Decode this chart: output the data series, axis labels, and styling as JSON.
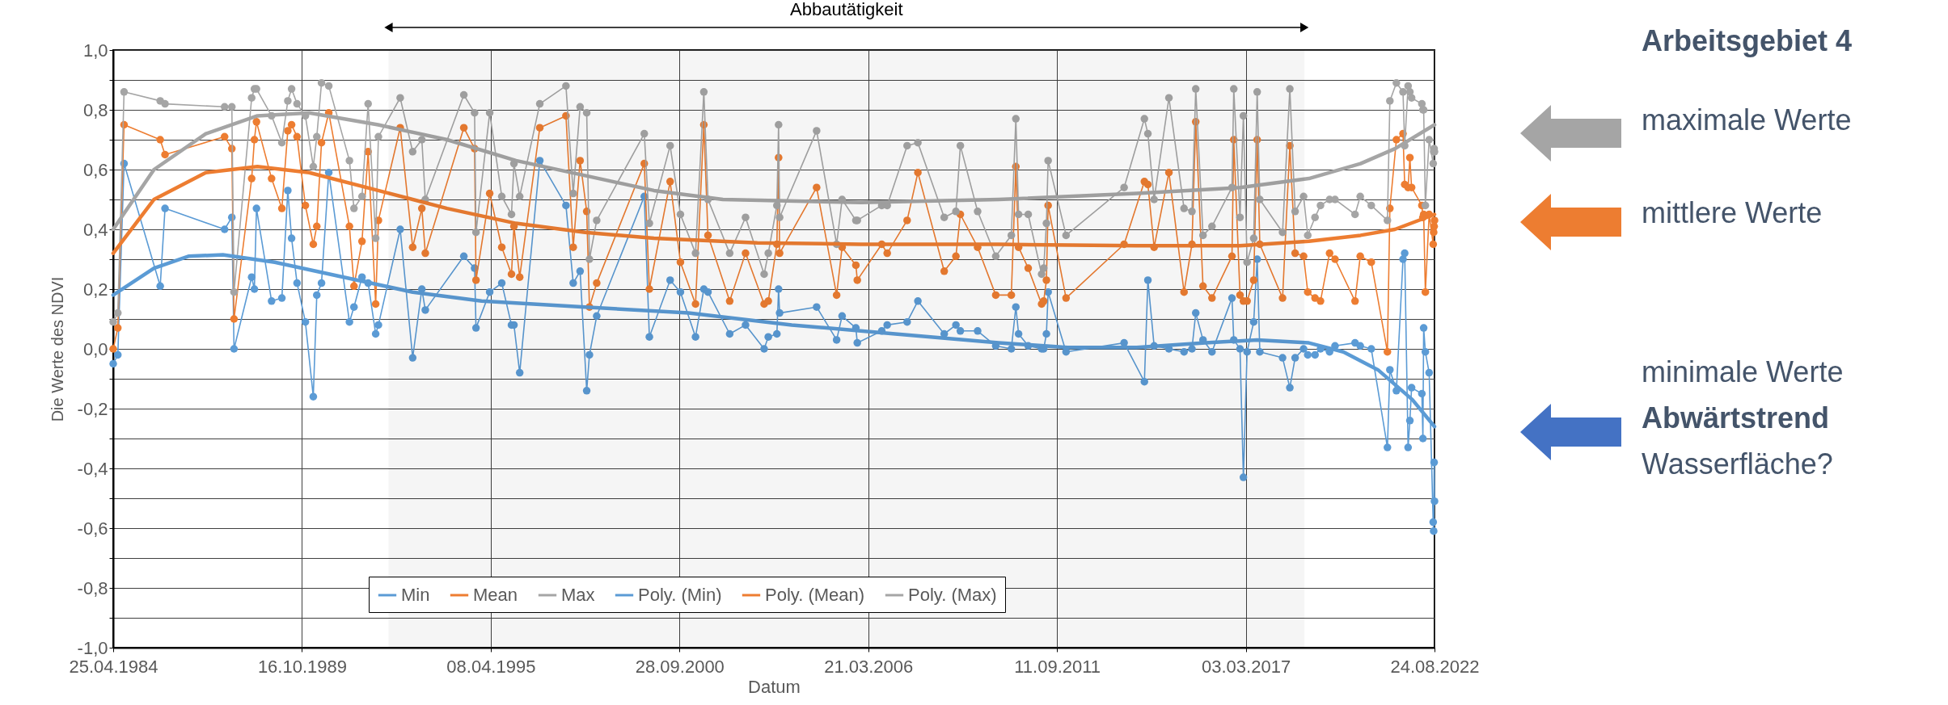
{
  "chart_data": {
    "type": "line",
    "xlabel": "Datum",
    "ylabel": "Die Werte des NDVI",
    "grid": true,
    "legend": "bottom",
    "marker": "circle",
    "xlim": [
      "1984-04-25",
      "2022-08-24"
    ],
    "xticks": [
      {
        "value": "1984-04-25",
        "label": "25.04.1984"
      },
      {
        "value": "1989-10-16",
        "label": "16.10.1989"
      },
      {
        "value": "1995-04-08",
        "label": "08.04.1995"
      },
      {
        "value": "2000-09-28",
        "label": "28.09.2000"
      },
      {
        "value": "2006-03-21",
        "label": "21.03.2006"
      },
      {
        "value": "2011-09-11",
        "label": "11.09.2011"
      },
      {
        "value": "2017-03-03",
        "label": "03.03.2017"
      },
      {
        "value": "2022-08-24",
        "label": "24.08.2022"
      }
    ],
    "ylim": [
      -1,
      1
    ],
    "yticks": [
      {
        "value": -1,
        "label": "-1,0"
      },
      {
        "value": -0.9,
        "label": null
      },
      {
        "value": -0.8,
        "label": "-0,8"
      },
      {
        "value": -0.7,
        "label": null
      },
      {
        "value": -0.6,
        "label": "-0,6"
      },
      {
        "value": -0.5,
        "label": null
      },
      {
        "value": -0.4,
        "label": "-0,4"
      },
      {
        "value": -0.3,
        "label": null
      },
      {
        "value": -0.2,
        "label": "-0,2"
      },
      {
        "value": -0.1,
        "label": null
      },
      {
        "value": 0,
        "label": "0,0"
      },
      {
        "value": 0.1,
        "label": null
      },
      {
        "value": 0.2,
        "label": "0,2"
      },
      {
        "value": 0.3,
        "label": null
      },
      {
        "value": 0.4,
        "label": "0,4"
      },
      {
        "value": 0.5,
        "label": null
      },
      {
        "value": 0.6,
        "label": "0,6"
      },
      {
        "value": 0.7,
        "label": null
      },
      {
        "value": 0.8,
        "label": "0,8"
      },
      {
        "value": 0.9,
        "label": null
      },
      {
        "value": 1,
        "label": "1,0"
      }
    ],
    "x": [
      "1984-04-25",
      "1984-06-13",
      "1984-08-18",
      "1985-09-05",
      "1985-10-26",
      "1987-07-19",
      "1987-10-04",
      "1987-10-27",
      "1988-05-01",
      "1988-05-30",
      "1988-06-21",
      "1988-11-28",
      "1989-03-17",
      "1989-05-19",
      "1989-06-28",
      "1989-08-25",
      "1989-11-21",
      "1990-02-13",
      "1990-03-22",
      "1990-05-11",
      "1990-07-27",
      "1991-03-03",
      "1991-04-20",
      "1991-07-14",
      "1991-09-17",
      "1991-12-06",
      "1992-01-04",
      "1992-08-22",
      "1993-01-01",
      "1993-04-08",
      "1993-05-15",
      "1994-06-27",
      "1994-10-19",
      "1994-11-03",
      "1995-03-28",
      "1995-08-03",
      "1995-11-14",
      "1995-12-10",
      "1996-02-09",
      "1996-09-09",
      "1997-06-13",
      "1997-08-29",
      "1997-11-10",
      "1998-01-19",
      "1998-02-17",
      "1998-05-05",
      "1999-09-21",
      "1999-11-14",
      "2000-06-21",
      "2000-10-08",
      "2001-03-17",
      "2001-06-13",
      "2001-07-27",
      "2002-03-14",
      "2002-08-29",
      "2003-03-14",
      "2003-04-27",
      "2003-07-27",
      "2003-08-14",
      "2003-08-25",
      "2004-09-20",
      "2005-04-20",
      "2005-06-17",
      "2005-11-10",
      "2005-11-25",
      "2006-08-11",
      "2006-10-08",
      "2007-05-07",
      "2007-08-29",
      "2008-06-03",
      "2008-10-05",
      "2008-11-21",
      "2009-05-23",
      "2009-12-01",
      "2010-05-15",
      "2010-07-02",
      "2010-07-31",
      "2010-11-10",
      "2011-04-01",
      "2011-04-23",
      "2011-05-22",
      "2011-06-09",
      "2011-12-16",
      "2013-08-22",
      "2014-03-25",
      "2014-05-01",
      "2014-07-06",
      "2014-12-10",
      "2015-05-19",
      "2015-08-11",
      "2015-09-20",
      "2015-12-06",
      "2016-03-10",
      "2016-10-08",
      "2016-10-27",
      "2017-01-01",
      "2017-02-06",
      "2017-03-17",
      "2017-05-26",
      "2017-07-02",
      "2017-07-30",
      "2018-03-28",
      "2018-06-13",
      "2018-08-08",
      "2018-11-06",
      "2018-12-20",
      "2019-03-07",
      "2019-05-04",
      "2019-08-08",
      "2019-10-05",
      "2020-05-04",
      "2020-06-28",
      "2020-10-23",
      "2021-04-12",
      "2021-05-08",
      "2021-07-16",
      "2021-09-24",
      "2021-10-12",
      "2021-11-17",
      "2021-12-06",
      "2021-12-24",
      "2022-04-12",
      "2022-04-23",
      "2022-05-01",
      "2022-05-19",
      "2022-06-28",
      "2022-08-10",
      "2022-08-15",
      "2022-08-20",
      "2022-08-24"
    ],
    "series": [
      {
        "name": "Min",
        "color": "#5b9bd5",
        "values": [
          -0.05,
          -0.02,
          0.62,
          0.21,
          0.47,
          0.4,
          0.44,
          0.0,
          0.24,
          0.2,
          0.47,
          0.16,
          0.17,
          0.53,
          0.37,
          0.22,
          0.09,
          -0.16,
          0.18,
          0.22,
          0.59,
          0.09,
          0.14,
          0.24,
          0.22,
          0.05,
          0.08,
          0.4,
          -0.03,
          0.2,
          0.13,
          0.31,
          0.27,
          0.07,
          0.19,
          0.22,
          0.08,
          0.08,
          -0.08,
          0.63,
          0.48,
          0.22,
          0.26,
          -0.14,
          -0.02,
          0.11,
          0.51,
          0.04,
          0.23,
          0.19,
          0.04,
          0.2,
          0.19,
          0.05,
          0.08,
          0.0,
          0.04,
          0.05,
          0.2,
          0.12,
          0.14,
          0.03,
          0.11,
          0.07,
          0.02,
          0.06,
          0.08,
          0.09,
          0.16,
          0.05,
          0.08,
          0.06,
          0.06,
          0.01,
          0.0,
          0.14,
          0.05,
          0.01,
          0.0,
          0.0,
          0.05,
          0.19,
          -0.01,
          0.02,
          -0.11,
          0.23,
          0.01,
          0.0,
          -0.01,
          0.0,
          0.12,
          0.03,
          -0.01,
          0.17,
          0.03,
          0.0,
          -0.43,
          -0.01,
          0.09,
          0.3,
          -0.01,
          -0.03,
          -0.13,
          -0.03,
          0.0,
          -0.02,
          -0.02,
          0.0,
          -0.01,
          0.01,
          0.02,
          0.01,
          0.0,
          -0.33,
          -0.07,
          -0.14,
          0.3,
          0.32,
          -0.33,
          -0.24,
          -0.13,
          -0.15,
          -0.3,
          0.07,
          -0.01,
          -0.08,
          -0.58,
          -0.61,
          -0.38,
          -0.51
        ]
      },
      {
        "name": "Mean",
        "color": "#ed7d31",
        "values": [
          0.0,
          0.07,
          0.75,
          0.7,
          0.65,
          0.71,
          0.67,
          0.1,
          0.57,
          0.7,
          0.76,
          0.57,
          0.47,
          0.73,
          0.75,
          0.71,
          0.48,
          0.35,
          0.41,
          0.69,
          0.79,
          0.41,
          0.21,
          0.36,
          0.66,
          0.15,
          0.43,
          0.74,
          0.34,
          0.47,
          0.32,
          0.74,
          0.67,
          0.23,
          0.52,
          0.34,
          0.25,
          0.41,
          0.24,
          0.74,
          0.78,
          0.34,
          0.63,
          0.46,
          0.14,
          0.22,
          0.62,
          0.2,
          0.56,
          0.29,
          0.15,
          0.75,
          0.38,
          0.16,
          0.32,
          0.15,
          0.16,
          0.35,
          0.64,
          0.32,
          0.54,
          0.18,
          0.34,
          0.28,
          0.23,
          0.35,
          0.32,
          0.43,
          0.59,
          0.26,
          0.31,
          0.45,
          0.34,
          0.18,
          0.18,
          0.61,
          0.34,
          0.27,
          0.15,
          0.16,
          0.23,
          0.48,
          0.17,
          0.35,
          0.56,
          0.55,
          0.34,
          0.59,
          0.19,
          0.35,
          0.76,
          0.21,
          0.17,
          0.31,
          0.7,
          0.18,
          0.16,
          0.16,
          0.23,
          0.7,
          0.35,
          0.17,
          0.68,
          0.32,
          0.31,
          0.19,
          0.17,
          0.16,
          0.32,
          0.3,
          0.16,
          0.31,
          0.29,
          -0.01,
          0.47,
          0.7,
          0.72,
          0.55,
          0.54,
          0.64,
          0.54,
          0.48,
          0.44,
          0.45,
          0.19,
          0.45,
          0.35,
          0.39,
          0.41,
          0.43
        ]
      },
      {
        "name": "Max",
        "color": "#a5a5a5",
        "values": [
          0.09,
          0.12,
          0.86,
          0.83,
          0.82,
          0.81,
          0.81,
          0.19,
          0.84,
          0.87,
          0.87,
          0.78,
          0.69,
          0.83,
          0.87,
          0.82,
          0.78,
          0.61,
          0.71,
          0.89,
          0.88,
          0.63,
          0.47,
          0.51,
          0.82,
          0.37,
          0.71,
          0.84,
          0.66,
          0.7,
          0.5,
          0.85,
          0.79,
          0.39,
          0.79,
          0.51,
          0.45,
          0.62,
          0.51,
          0.82,
          0.88,
          0.52,
          0.81,
          0.79,
          0.3,
          0.43,
          0.72,
          0.42,
          0.68,
          0.45,
          0.32,
          0.86,
          0.5,
          0.32,
          0.44,
          0.25,
          0.32,
          0.48,
          0.75,
          0.44,
          0.73,
          0.35,
          0.5,
          0.43,
          0.43,
          0.48,
          0.48,
          0.68,
          0.69,
          0.44,
          0.46,
          0.68,
          0.46,
          0.31,
          0.38,
          0.77,
          0.45,
          0.45,
          0.25,
          0.27,
          0.42,
          0.63,
          0.38,
          0.54,
          0.77,
          0.72,
          0.5,
          0.84,
          0.47,
          0.46,
          0.87,
          0.38,
          0.41,
          0.54,
          0.87,
          0.44,
          0.78,
          0.29,
          0.37,
          0.86,
          0.5,
          0.39,
          0.87,
          0.46,
          0.51,
          0.38,
          0.44,
          0.48,
          0.5,
          0.5,
          0.45,
          0.51,
          0.48,
          0.43,
          0.83,
          0.89,
          0.86,
          0.68,
          0.88,
          0.86,
          0.84,
          0.82,
          0.8,
          0.8,
          0.48,
          0.7,
          0.62,
          0.66,
          0.67,
          0.66
        ]
      },
      {
        "name": "Poly. (Min)",
        "color": "#5b9bd5",
        "marker": "none",
        "x": [
          "1984-04-25",
          "1985-07",
          "1986-07",
          "1987-07",
          "1989-01",
          "1991-01",
          "1993-01",
          "1995-01",
          "1998-01",
          "2001-01",
          "2004-01",
          "2007-01",
          "2010-01",
          "2012-01",
          "2014-01",
          "2016-01",
          "2017-07",
          "2019-01",
          "2020-01",
          "2021-01",
          "2022-01",
          "2022-08-24"
        ],
        "values": [
          0.18,
          0.27,
          0.31,
          0.315,
          0.29,
          0.24,
          0.19,
          0.16,
          0.14,
          0.12,
          0.08,
          0.05,
          0.02,
          0.005,
          0.005,
          0.02,
          0.03,
          0.02,
          -0.01,
          -0.07,
          -0.17,
          -0.26
        ]
      },
      {
        "name": "Poly. (Mean)",
        "color": "#ed7d31",
        "marker": "none",
        "x": [
          "1984-04-25",
          "1985-07",
          "1987-01",
          "1988-07",
          "1990-01",
          "1992-01",
          "1994-01",
          "1996-01",
          "1998-01",
          "2000-01",
          "2003-01",
          "2006-01",
          "2010-01",
          "2014-01",
          "2017-01",
          "2019-01",
          "2020-07",
          "2021-07",
          "2022-08-24"
        ],
        "values": [
          0.32,
          0.5,
          0.59,
          0.61,
          0.59,
          0.53,
          0.47,
          0.42,
          0.39,
          0.37,
          0.355,
          0.35,
          0.35,
          0.345,
          0.345,
          0.36,
          0.38,
          0.4,
          0.45
        ]
      },
      {
        "name": "Poly. (Max)",
        "color": "#a5a5a5",
        "marker": "none",
        "x": [
          "1984-04-25",
          "1985-07",
          "1987-01",
          "1988-07",
          "1990-01",
          "1992-01",
          "1994-01",
          "1996-01",
          "1998-01",
          "2000-01",
          "2002-01",
          "2006-01",
          "2010-01",
          "2014-01",
          "2017-01",
          "2019-01",
          "2020-07",
          "2021-07",
          "2022-08-24"
        ],
        "values": [
          0.4,
          0.6,
          0.72,
          0.78,
          0.79,
          0.75,
          0.7,
          0.63,
          0.58,
          0.53,
          0.5,
          0.49,
          0.5,
          0.52,
          0.54,
          0.57,
          0.62,
          0.67,
          0.75
        ]
      }
    ],
    "bands": [
      {
        "axis": "x",
        "from": "1992-04-20",
        "to": "2018-11-15",
        "label": "Abbautätigkeit"
      }
    ],
    "annotations": [
      "Arbeitsgebiet 4",
      "maximale Werte",
      "mittlere Werte",
      "minimale Werte",
      "Abwärtstrend",
      "Wasserfläche?"
    ]
  }
}
